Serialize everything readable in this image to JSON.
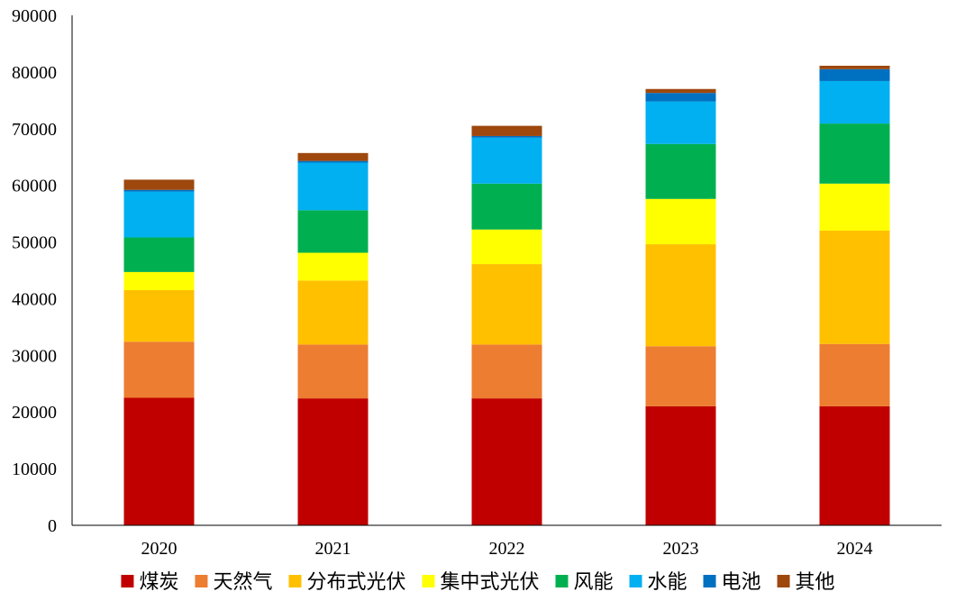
{
  "chart_data": {
    "type": "bar",
    "stacked": true,
    "title": "",
    "xlabel": "",
    "ylabel": "",
    "categories": [
      "2020",
      "2021",
      "2022",
      "2023",
      "2024"
    ],
    "ylim": [
      0,
      90000
    ],
    "yticks": [
      0,
      10000,
      20000,
      30000,
      40000,
      50000,
      60000,
      70000,
      80000,
      90000
    ],
    "grid": false,
    "legend_position": "bottom",
    "series": [
      {
        "name": "煤炭",
        "color": "#C00000",
        "values": [
          22500,
          22400,
          22400,
          21000,
          21000
        ]
      },
      {
        "name": "天然气",
        "color": "#ED7D31",
        "values": [
          9900,
          9500,
          9500,
          10600,
          11000
        ]
      },
      {
        "name": "分布式光伏",
        "color": "#FFC000",
        "values": [
          9100,
          11300,
          14200,
          18000,
          20000
        ]
      },
      {
        "name": "集中式光伏",
        "color": "#FFFF00",
        "values": [
          3200,
          4900,
          6100,
          8000,
          8300
        ]
      },
      {
        "name": "风能",
        "color": "#00B050",
        "values": [
          6100,
          7500,
          8100,
          9700,
          10600
        ]
      },
      {
        "name": "水能",
        "color": "#00B0F0",
        "values": [
          8100,
          8400,
          8100,
          7500,
          7500
        ]
      },
      {
        "name": "电池",
        "color": "#0070C0",
        "values": [
          300,
          300,
          300,
          1500,
          2100
        ]
      },
      {
        "name": "其他",
        "color": "#9E480E",
        "values": [
          1800,
          1400,
          1800,
          700,
          600
        ]
      }
    ]
  }
}
